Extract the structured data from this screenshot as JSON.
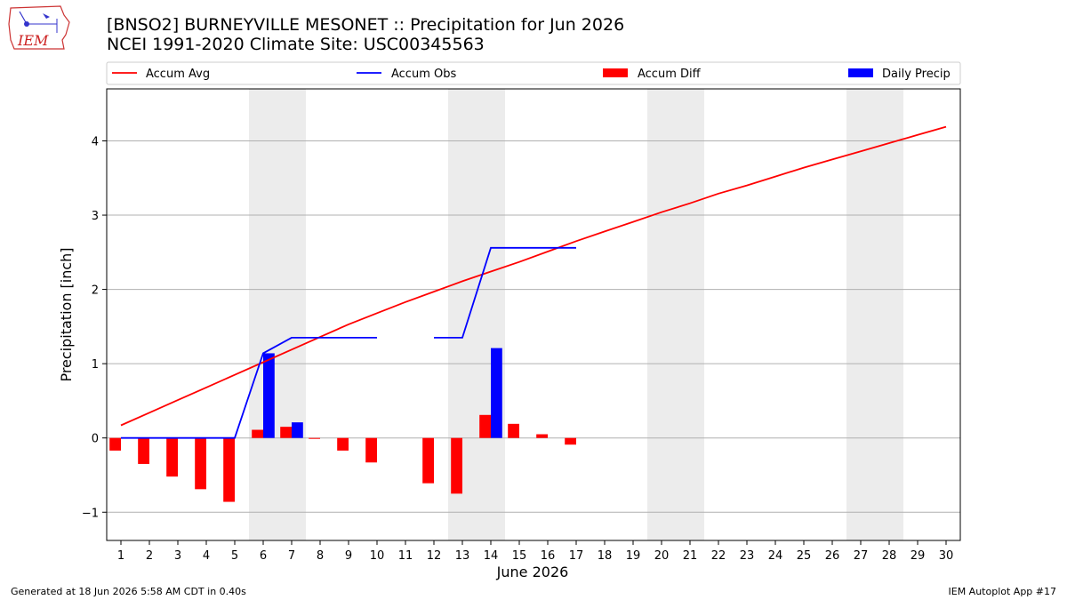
{
  "header": {
    "title": "[BNSO2] BURNEYVILLE MESONET :: Precipitation for Jun 2026",
    "subtitle": "NCEI 1991-2020 Climate Site: USC00345563"
  },
  "logo": {
    "text": "IEM",
    "icon": "iem-iowa-logo-icon"
  },
  "footer": {
    "generated": "Generated at 18 Jun 2026 5:58 AM CDT in 0.40s",
    "app": "IEM Autoplot App #17"
  },
  "chart_data": {
    "type": "bar",
    "xlabel": "June 2026",
    "ylabel": "Precipitation [inch]",
    "xlim": [
      0.5,
      30.5
    ],
    "ylim": [
      -1.38,
      4.7
    ],
    "yticks": [
      -1,
      0,
      1,
      2,
      3,
      4
    ],
    "yticklabels": [
      "−1",
      "0",
      "1",
      "2",
      "3",
      "4"
    ],
    "days": [
      1,
      2,
      3,
      4,
      5,
      6,
      7,
      8,
      9,
      10,
      11,
      12,
      13,
      14,
      15,
      16,
      17,
      18,
      19,
      20,
      21,
      22,
      23,
      24,
      25,
      26,
      27,
      28,
      29,
      30
    ],
    "weekend_spans": [
      [
        5.5,
        7.5
      ],
      [
        12.5,
        14.5
      ],
      [
        19.5,
        21.5
      ],
      [
        26.5,
        28.5
      ]
    ],
    "grid": "horizontal",
    "legend_position": "top",
    "colors": {
      "avg": "#ff0000",
      "obs": "#0000ff",
      "diff": "#ff0000",
      "daily": "#0000ff",
      "weekend": "#ececec",
      "grid": "#b0b0b0"
    },
    "legend": [
      "Accum Avg",
      "Accum Obs",
      "Accum Diff",
      "Daily Precip"
    ],
    "series": [
      {
        "name": "Accum Avg",
        "kind": "line",
        "x": [
          1,
          2,
          3,
          4,
          5,
          6,
          7,
          8,
          9,
          10,
          11,
          12,
          13,
          14,
          15,
          16,
          17,
          18,
          19,
          20,
          21,
          22,
          23,
          24,
          25,
          26,
          27,
          28,
          29,
          30
        ],
        "values": [
          0.17,
          0.34,
          0.51,
          0.68,
          0.85,
          1.02,
          1.19,
          1.36,
          1.53,
          1.68,
          1.83,
          1.97,
          2.11,
          2.24,
          2.37,
          2.51,
          2.65,
          2.78,
          2.91,
          3.04,
          3.16,
          3.29,
          3.4,
          3.52,
          3.64,
          3.75,
          3.86,
          3.97,
          4.08,
          4.19
        ]
      },
      {
        "name": "Accum Obs",
        "kind": "line",
        "x": [
          1,
          2,
          3,
          4,
          5,
          6,
          7,
          8,
          9,
          10,
          11,
          12,
          13,
          14,
          15,
          16,
          17
        ],
        "values": [
          0,
          0,
          0,
          0,
          0,
          1.14,
          1.35,
          1.35,
          1.35,
          1.35,
          null,
          1.35,
          1.35,
          2.56,
          2.56,
          2.56,
          2.56
        ]
      },
      {
        "name": "Accum Diff",
        "kind": "bar",
        "offset": -0.2,
        "x": [
          1,
          2,
          3,
          4,
          5,
          6,
          7,
          8,
          9,
          10,
          12,
          13,
          14,
          15,
          16,
          17
        ],
        "values": [
          -0.17,
          -0.35,
          -0.52,
          -0.69,
          -0.86,
          0.11,
          0.15,
          -0.01,
          -0.17,
          -0.33,
          -0.61,
          -0.75,
          0.31,
          0.19,
          0.05,
          -0.09
        ]
      },
      {
        "name": "Daily Precip",
        "kind": "bar",
        "offset": 0.2,
        "x": [
          6,
          7,
          14
        ],
        "values": [
          1.14,
          0.21,
          1.21
        ]
      }
    ]
  }
}
